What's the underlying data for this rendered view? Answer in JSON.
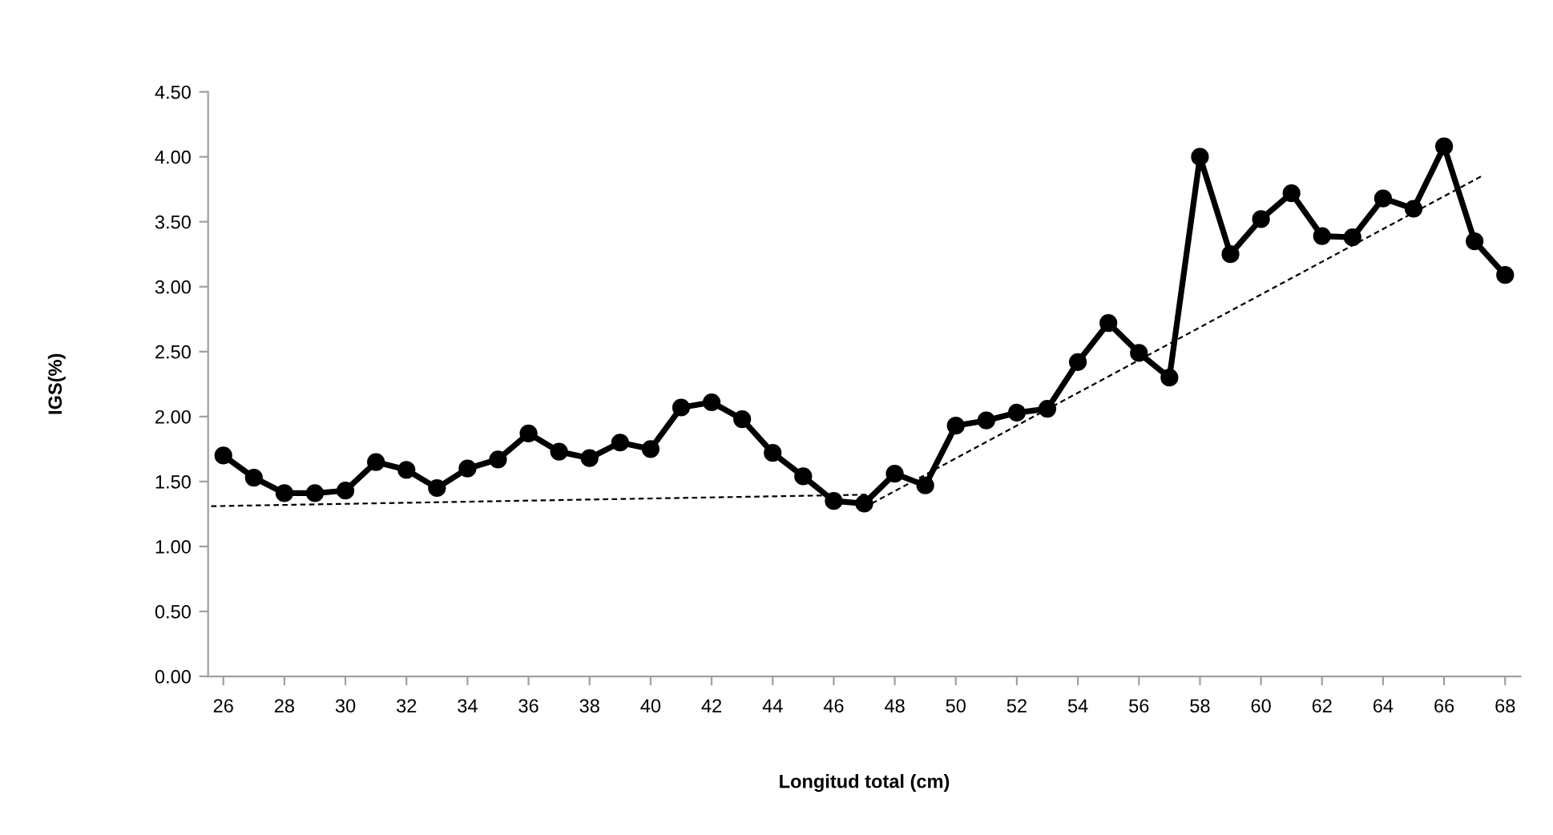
{
  "chart_data": {
    "type": "line",
    "xlabel": "Longitud total (cm)",
    "ylabel": "IGS(%)",
    "x": [
      26,
      27,
      28,
      29,
      30,
      31,
      32,
      33,
      34,
      35,
      36,
      37,
      38,
      39,
      40,
      41,
      42,
      43,
      44,
      45,
      46,
      47,
      48,
      49,
      50,
      51,
      52,
      53,
      54,
      55,
      56,
      57,
      58,
      59,
      60,
      61,
      62,
      63,
      64,
      65,
      66,
      67,
      68
    ],
    "series": [
      {
        "color": "#000000",
        "marker": "circle",
        "line_style": "solid",
        "values": [
          1.7,
          1.53,
          1.41,
          1.41,
          1.43,
          1.65,
          1.59,
          1.45,
          1.6,
          1.67,
          1.87,
          1.73,
          1.68,
          1.8,
          1.75,
          2.07,
          2.11,
          1.98,
          1.72,
          1.54,
          1.35,
          1.33,
          1.56,
          1.47,
          1.93,
          1.97,
          2.03,
          2.06,
          2.42,
          2.72,
          2.49,
          2.3,
          4.0,
          3.25,
          3.52,
          3.72,
          3.39,
          3.38,
          3.68,
          3.6,
          4.08,
          3.35,
          3.09
        ]
      },
      {
        "type": "line",
        "color": "#000000",
        "marker": "none",
        "line_style": "dashed",
        "x": [
          25.6,
          47.4
        ],
        "values": [
          1.31,
          1.4
        ]
      },
      {
        "type": "line",
        "color": "#000000",
        "marker": "none",
        "line_style": "dashed",
        "x": [
          47,
          67.3
        ],
        "values": [
          1.3,
          3.86
        ]
      }
    ],
    "xlim": [
      25.5,
      68.5
    ],
    "xticks": [
      26,
      28,
      30,
      32,
      34,
      36,
      38,
      40,
      42,
      44,
      46,
      48,
      50,
      52,
      54,
      56,
      58,
      60,
      62,
      64,
      66,
      68
    ],
    "ylim": [
      0,
      4.5
    ],
    "yticks": [
      {
        "value": 0,
        "label": "0.00"
      },
      {
        "value": 0.5,
        "label": "0.50"
      },
      {
        "value": 1,
        "label": "1.00"
      },
      {
        "value": 1.5,
        "label": "1.50"
      },
      {
        "value": 2,
        "label": "2.00"
      },
      {
        "value": 2.5,
        "label": "2.50"
      },
      {
        "value": 3,
        "label": "3.00"
      },
      {
        "value": 3.5,
        "label": "3.50"
      },
      {
        "value": 4,
        "label": "4.00"
      },
      {
        "value": 4.5,
        "label": "4.50"
      }
    ],
    "grid": false,
    "legend": false
  }
}
